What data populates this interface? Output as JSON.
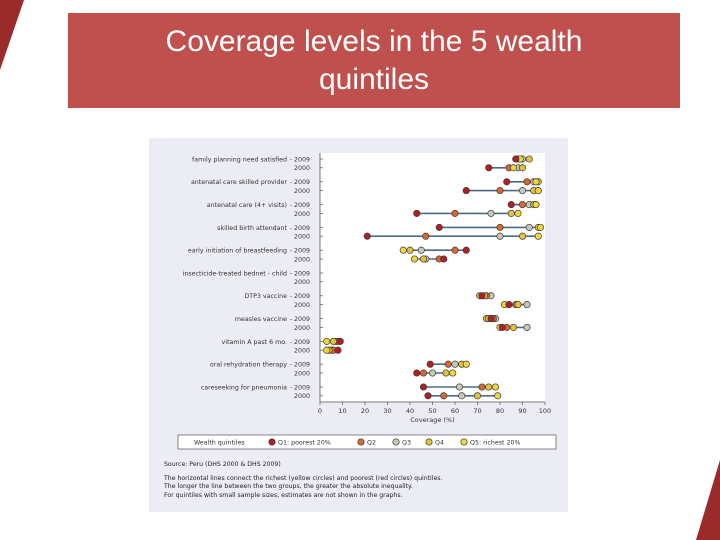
{
  "slide": {
    "title": "Coverage levels in the 5 wealth quintiles",
    "colors": {
      "banner": "#c0504d",
      "corner": "#9b2a2a",
      "panel": "#ecedf4",
      "plot_bg": "#ffffff",
      "connector": "#4a6a8a"
    }
  },
  "chart_data": {
    "type": "scatter",
    "subtype": "dot-range (equiplot)",
    "title": "",
    "xlabel": "Coverage (%)",
    "ylabel": "",
    "xlim": [
      0,
      100
    ],
    "x_ticks": [
      "0",
      "10",
      "20",
      "30",
      "40",
      "50",
      "60",
      "70",
      "80",
      "90",
      "100"
    ],
    "grid": false,
    "legend_placement": "bottom",
    "legend_title": "Wealth quintiles",
    "series": [
      {
        "name": "Q1: poorest 20%",
        "color": "#b11f24"
      },
      {
        "name": "Q2",
        "color": "#d8692e"
      },
      {
        "name": "Q3",
        "color": "#c7c9b4"
      },
      {
        "name": "Q4",
        "color": "#e2c23a"
      },
      {
        "name": "Q5: richest 20%",
        "color": "#f2d43c"
      }
    ],
    "indicators": [
      {
        "label": "family planning need satisfied",
        "rows": [
          {
            "year": "2009",
            "values": [
              87,
              88,
              90,
              93,
              89
            ]
          },
          {
            "year": "2000",
            "values": [
              75,
              84,
              88,
              90,
              86
            ]
          }
        ]
      },
      {
        "label": "antenatal care skilled provider",
        "rows": [
          {
            "year": "2009",
            "values": [
              83,
              92,
              95,
              97,
              96
            ]
          },
          {
            "year": "2000",
            "values": [
              65,
              80,
              90,
              95,
              97
            ]
          }
        ]
      },
      {
        "label": "antenatal care (4+ visits)",
        "rows": [
          {
            "year": "2009",
            "values": [
              85,
              90,
              93,
              95,
              96
            ]
          },
          {
            "year": "2000",
            "values": [
              43,
              60,
              76,
              85,
              88
            ]
          }
        ]
      },
      {
        "label": "skilled birth attendant",
        "rows": [
          {
            "year": "2009",
            "values": [
              53,
              80,
              93,
              97,
              98
            ]
          },
          {
            "year": "2000",
            "values": [
              21,
              47,
              80,
              90,
              97
            ]
          }
        ]
      },
      {
        "label": "early initiation of breastfeeding",
        "rows": [
          {
            "year": "2009",
            "values": [
              65,
              60,
              45,
              40,
              37
            ]
          },
          {
            "year": "2000",
            "values": [
              55,
              53,
              47,
              46,
              42
            ]
          }
        ]
      },
      {
        "label": "insecticide-treated bednet - child",
        "rows": [
          {
            "year": "2009",
            "values": []
          },
          {
            "year": "2000",
            "values": []
          }
        ]
      },
      {
        "label": "DTP3 vaccine",
        "rows": [
          {
            "year": "2009",
            "values": [
              72,
              74,
              76,
              71,
              73
            ]
          },
          {
            "year": "2000",
            "values": [
              84,
              87,
              92,
              88,
              82
            ]
          }
        ]
      },
      {
        "label": "measles vaccine",
        "rows": [
          {
            "year": "2009",
            "values": [
              76,
              77,
              78,
              74,
              75
            ]
          },
          {
            "year": "2000",
            "values": [
              81,
              83,
              92,
              86,
              80
            ]
          }
        ]
      },
      {
        "label": "vitamin A past 6 mo.",
        "rows": [
          {
            "year": "2009",
            "values": [
              9,
              8,
              7,
              6,
              3
            ]
          },
          {
            "year": "2000",
            "values": [
              8,
              6,
              5,
              4,
              3
            ]
          }
        ]
      },
      {
        "label": "oral rehydration therapy",
        "rows": [
          {
            "year": "2009",
            "values": [
              49,
              57,
              60,
              63,
              65
            ]
          },
          {
            "year": "2000",
            "values": [
              43,
              46,
              50,
              56,
              59
            ]
          }
        ]
      },
      {
        "label": "careseeking for pneumonia",
        "rows": [
          {
            "year": "2009",
            "values": [
              46,
              72,
              62,
              75,
              78
            ]
          },
          {
            "year": "2000",
            "values": [
              48,
              55,
              63,
              70,
              79
            ]
          }
        ]
      }
    ]
  },
  "caption": {
    "source": "Source: Peru (DHS 2000 & DHS 2009)",
    "note_lines": [
      "The horizontal lines connect the richest (yellow circles) and poorest (red circles) quintiles.",
      "The longer the line between the two groups, the greater the absolute inequality.",
      "For quintiles with small sample sizes, estimates are not shown in the graphs."
    ]
  }
}
